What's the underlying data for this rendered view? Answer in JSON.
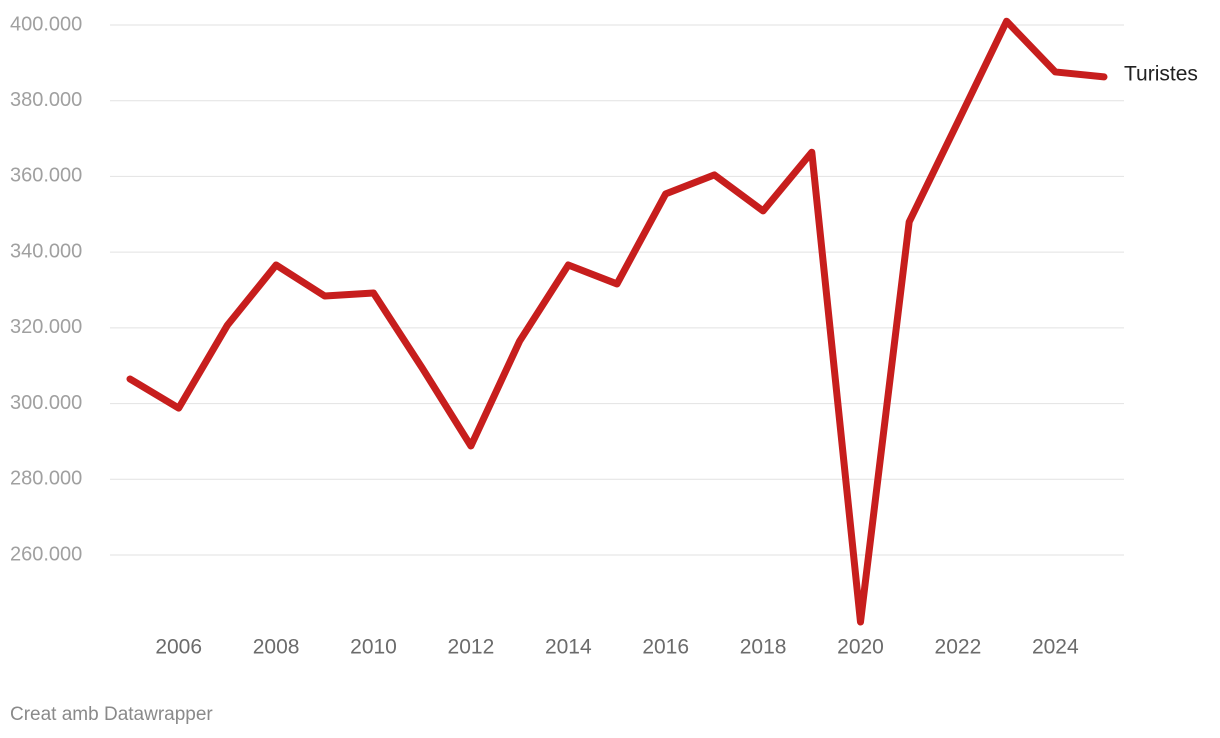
{
  "chart_data": {
    "type": "line",
    "x": [
      2005,
      2006,
      2007,
      2008,
      2009,
      2010,
      2011,
      2012,
      2013,
      2014,
      2015,
      2016,
      2017,
      2018,
      2019,
      2020,
      2021,
      2022,
      2023,
      2024,
      2025
    ],
    "series": [
      {
        "name": "Turistes",
        "color": "#c71e1d",
        "values": [
          306500,
          298800,
          320700,
          336600,
          328400,
          329200,
          309400,
          288800,
          316500,
          336600,
          331600,
          355400,
          360400,
          350900,
          366400,
          242300,
          348000,
          374400,
          401000,
          387600,
          386300
        ]
      }
    ],
    "xlim": [
      2005,
      2025
    ],
    "xticks": [
      2006,
      2008,
      2010,
      2012,
      2014,
      2016,
      2018,
      2020,
      2022,
      2024
    ],
    "ylim": [
      242300,
      400000
    ],
    "yticks": [
      {
        "value": 260000,
        "label": "260.000"
      },
      {
        "value": 280000,
        "label": "280.000"
      },
      {
        "value": 300000,
        "label": "300.000"
      },
      {
        "value": 320000,
        "label": "320.000"
      },
      {
        "value": 340000,
        "label": "340.000"
      },
      {
        "value": 360000,
        "label": "360.000"
      },
      {
        "value": 380000,
        "label": "380.000"
      },
      {
        "value": 400000,
        "label": "400.000"
      }
    ],
    "grid": true,
    "footer": "Creat amb Datawrapper"
  }
}
